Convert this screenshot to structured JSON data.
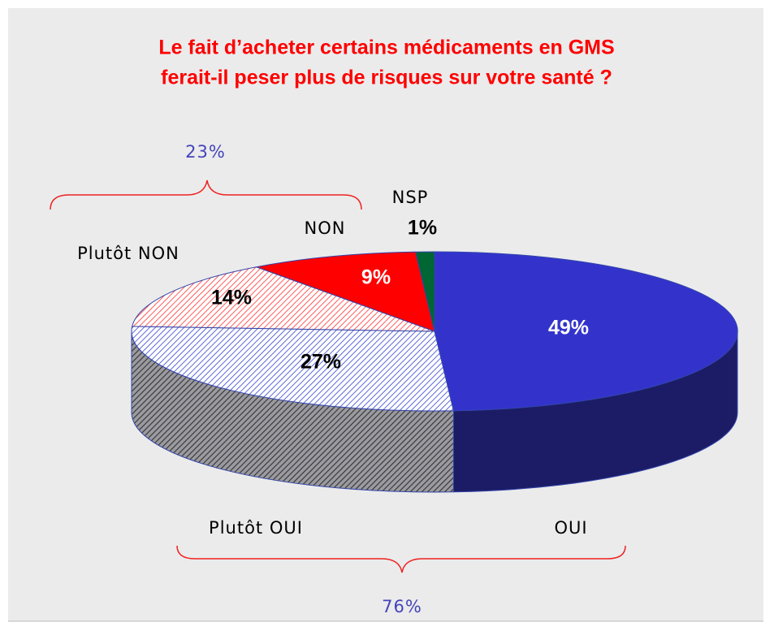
{
  "chart_data": {
    "type": "pie",
    "title": [
      "Le fait d’acheter certains médicaments en GMS",
      "ferait-il peser plus de risques sur votre santé ?"
    ],
    "categories": [
      "OUI",
      "Plutôt OUI",
      "Plutôt NON",
      "NON",
      "NSP"
    ],
    "values": [
      49,
      27,
      14,
      9,
      1
    ],
    "value_labels": [
      "49%",
      "27%",
      "14%",
      "9%",
      "1%"
    ],
    "styles": [
      {
        "fill": "#3333cc",
        "side": "#1c1c66",
        "label": "#ffffff"
      },
      {
        "fill": "#ffffff",
        "hatch": "#3344cc",
        "side": "#666666",
        "label": "#000000"
      },
      {
        "fill": "#ffffff",
        "hatch": "#ff3333",
        "side": "#666666",
        "label": "#000000"
      },
      {
        "fill": "#ff0000",
        "side": "#990000",
        "label": "#ffffff"
      },
      {
        "fill": "#006633",
        "side": "#003311",
        "label": "#000000"
      }
    ],
    "annotations": [
      "23%",
      "76%"
    ]
  }
}
